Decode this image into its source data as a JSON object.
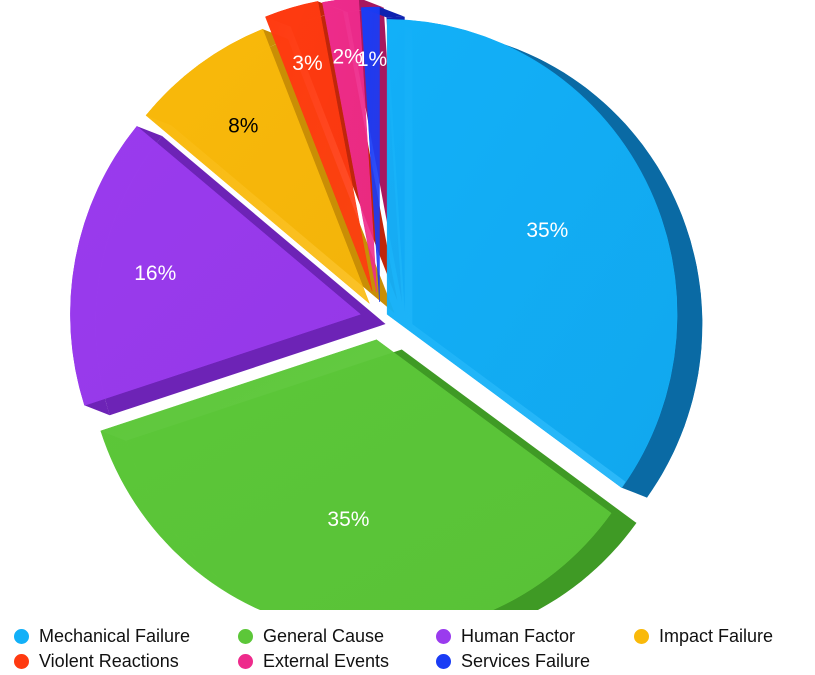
{
  "chart_data": {
    "type": "pie",
    "style": "3d-exploded",
    "slices": [
      {
        "name": "Mechanical Failure",
        "value": 35,
        "label": "35%",
        "color": "#12b0f8",
        "dark": "#0a6aa4",
        "label_color": "#ffffff"
      },
      {
        "name": "General Cause",
        "value": 35,
        "label": "35%",
        "color": "#5cc739",
        "dark": "#3f9a25",
        "label_color": "#ffffff"
      },
      {
        "name": "Human Factor",
        "value": 16,
        "label": "16%",
        "color": "#9a3bee",
        "dark": "#6d23b6",
        "label_color": "#ffffff"
      },
      {
        "name": "Impact Failure",
        "value": 8,
        "label": "8%",
        "color": "#f9b90a",
        "dark": "#c98e05",
        "label_color": "#000000"
      },
      {
        "name": "Violent Reactions",
        "value": 3,
        "label": "3%",
        "color": "#ff3a10",
        "dark": "#c0260a",
        "label_color": "#ffffff"
      },
      {
        "name": "External Events",
        "value": 2,
        "label": "2%",
        "color": "#ee2b8c",
        "dark": "#a8185f",
        "label_color": "#ffffff"
      },
      {
        "name": "Services Failure",
        "value": 1,
        "label": "1%",
        "color": "#1a3cf5",
        "dark": "#0e22b0",
        "label_color": "#ffffff"
      }
    ],
    "legend_position": "bottom"
  },
  "legend": [
    {
      "label": "Mechanical Failure",
      "color": "#12b0f8"
    },
    {
      "label": "General Cause",
      "color": "#5cc739"
    },
    {
      "label": "Human Factor",
      "color": "#9a3bee"
    },
    {
      "label": "Impact Failure",
      "color": "#f9b90a"
    },
    {
      "label": "Violent Reactions",
      "color": "#ff3a10"
    },
    {
      "label": "External Events",
      "color": "#ee2b8c"
    },
    {
      "label": "Services Failure",
      "color": "#1a3cf5"
    }
  ]
}
